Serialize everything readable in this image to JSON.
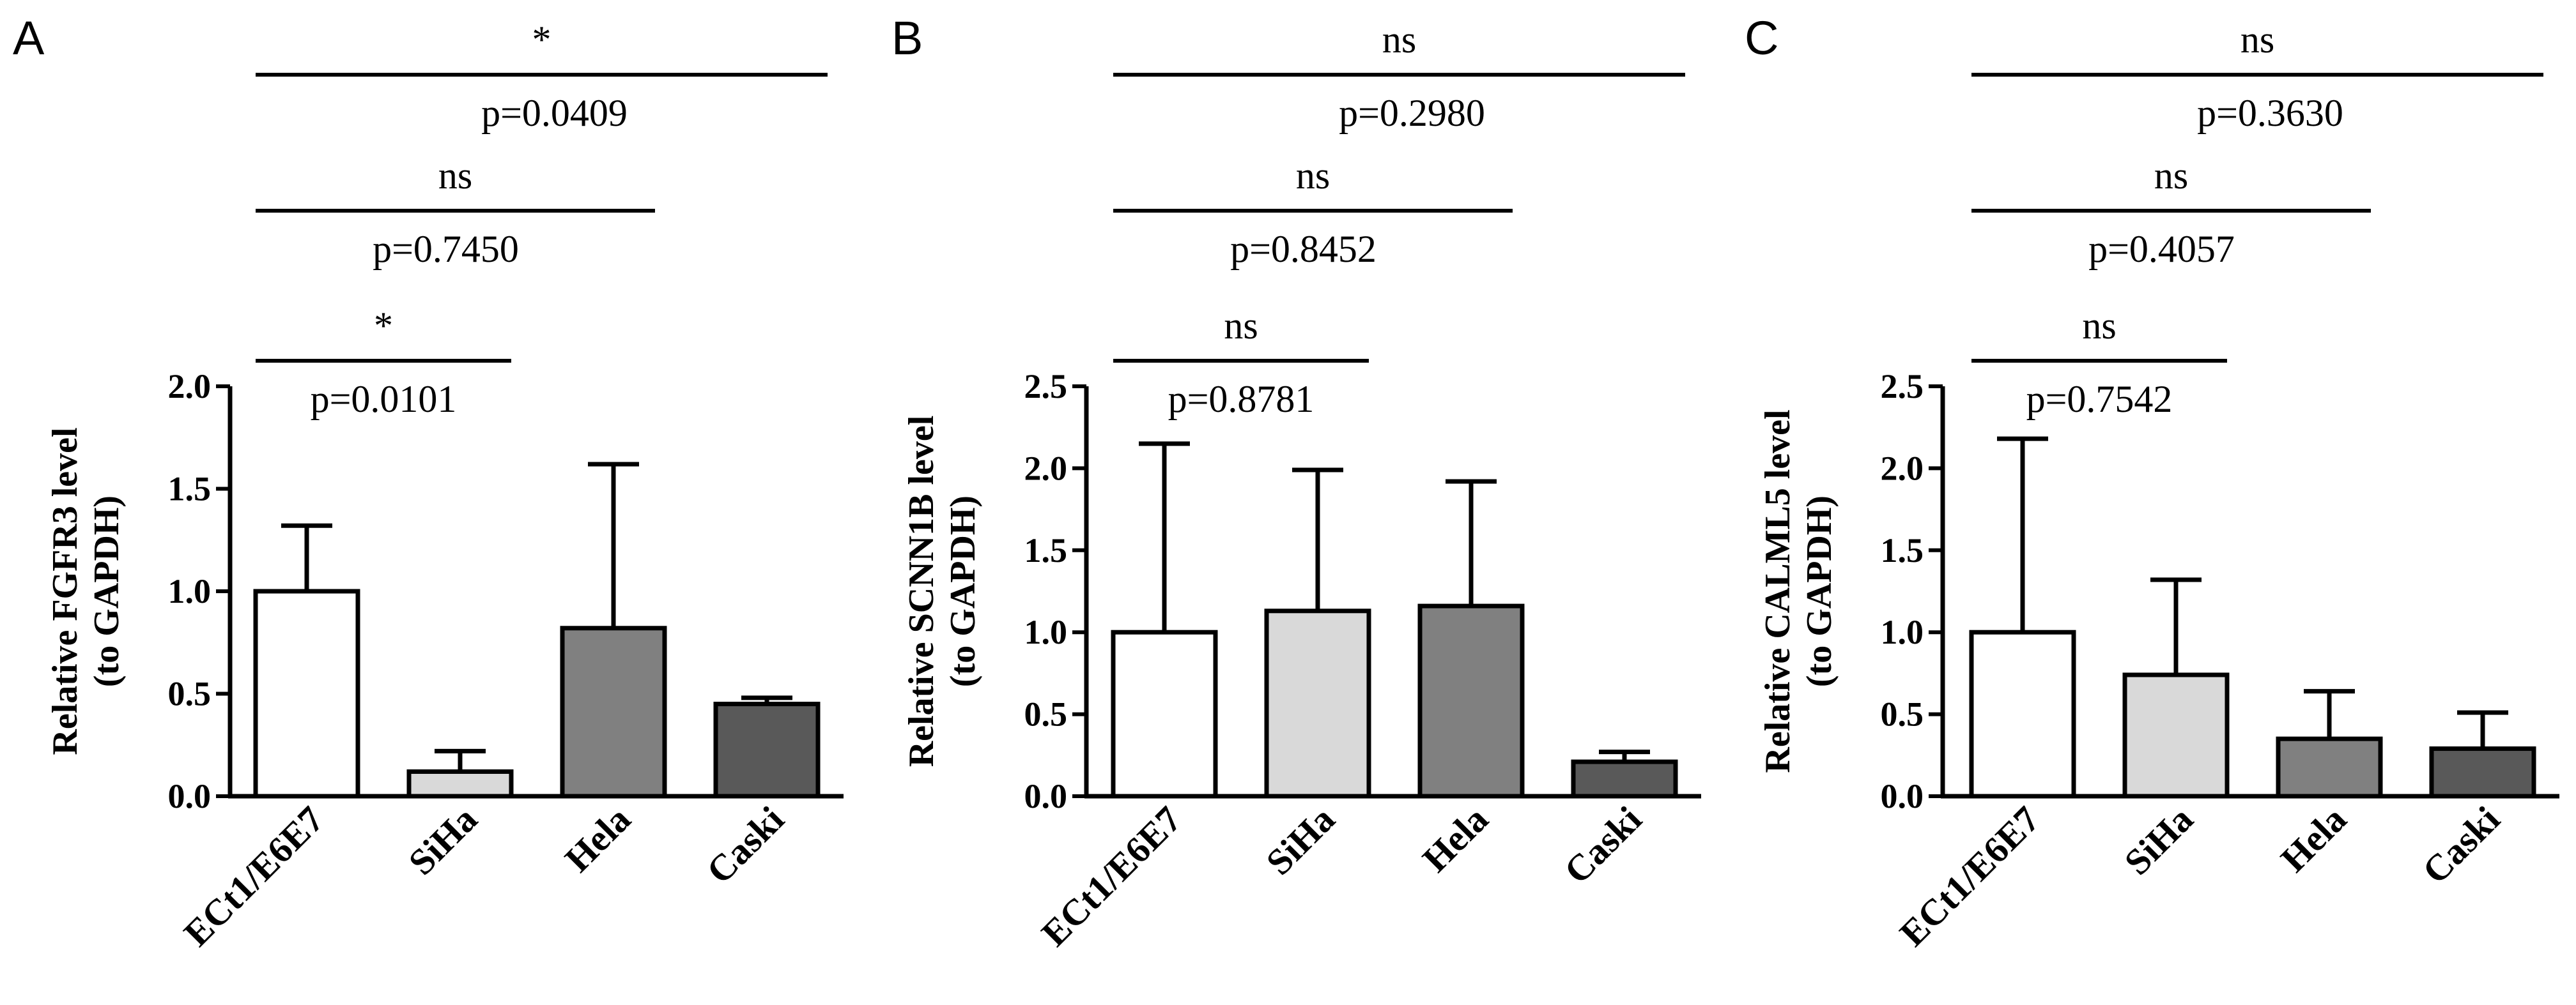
{
  "chart_data": [
    {
      "type": "bar",
      "panel": "A",
      "categories": [
        "ECt1/E6E7",
        "SiHa",
        "Hela",
        "Caski"
      ],
      "values": [
        1.0,
        0.12,
        0.82,
        0.45
      ],
      "errors": [
        0.32,
        0.1,
        0.8,
        0.03
      ],
      "colors": [
        "#ffffff",
        "#d9d9d9",
        "#808080",
        "#595959"
      ],
      "ylabel_line1": "Relative FGFR3 level",
      "ylabel_line2": "(to GAPDH)",
      "ylim": [
        0,
        2.0
      ],
      "yticks": [
        "0.0",
        "0.5",
        "1.0",
        "1.5",
        "2.0"
      ],
      "ytick_values": [
        0,
        0.5,
        1.0,
        1.5,
        2.0
      ],
      "comparisons": [
        {
          "from": 0,
          "to": 1,
          "sig": "*",
          "p": "p=0.0101",
          "level": 0
        },
        {
          "from": 0,
          "to": 2,
          "sig": "ns",
          "p": "p=0.7450",
          "level": 1
        },
        {
          "from": 0,
          "to": 3,
          "sig": "*",
          "p": "p=0.0409",
          "level": 2
        }
      ]
    },
    {
      "type": "bar",
      "panel": "B",
      "categories": [
        "ECt1/E6E7",
        "SiHa",
        "Hela",
        "Caski"
      ],
      "values": [
        1.0,
        1.13,
        1.16,
        0.21
      ],
      "errors": [
        1.15,
        0.86,
        0.76,
        0.06
      ],
      "colors": [
        "#ffffff",
        "#d9d9d9",
        "#808080",
        "#595959"
      ],
      "ylabel_line1": "Relative SCNN1B level",
      "ylabel_line2": "(to GAPDH)",
      "ylim": [
        0,
        2.5
      ],
      "yticks": [
        "0.0",
        "0.5",
        "1.0",
        "1.5",
        "2.0",
        "2.5"
      ],
      "ytick_values": [
        0,
        0.5,
        1.0,
        1.5,
        2.0,
        2.5
      ],
      "comparisons": [
        {
          "from": 0,
          "to": 1,
          "sig": "ns",
          "p": "p=0.8781",
          "level": 0
        },
        {
          "from": 0,
          "to": 2,
          "sig": "ns",
          "p": "p=0.8452",
          "level": 1
        },
        {
          "from": 0,
          "to": 3,
          "sig": "ns",
          "p": "p=0.2980",
          "level": 2
        }
      ]
    },
    {
      "type": "bar",
      "panel": "C",
      "categories": [
        "ECt1/E6E7",
        "SiHa",
        "Hela",
        "Caski"
      ],
      "values": [
        1.0,
        0.74,
        0.35,
        0.29
      ],
      "errors": [
        1.18,
        0.58,
        0.29,
        0.22
      ],
      "colors": [
        "#ffffff",
        "#d9d9d9",
        "#808080",
        "#595959"
      ],
      "ylabel_line1": "Relative CALML5 level",
      "ylabel_line2": "(to GAPDH)",
      "ylim": [
        0,
        2.5
      ],
      "yticks": [
        "0.0",
        "0.5",
        "1.0",
        "1.5",
        "2.0",
        "2.5"
      ],
      "ytick_values": [
        0,
        0.5,
        1.0,
        1.5,
        2.0,
        2.5
      ],
      "comparisons": [
        {
          "from": 0,
          "to": 1,
          "sig": "ns",
          "p": "p=0.7542",
          "level": 0
        },
        {
          "from": 0,
          "to": 2,
          "sig": "ns",
          "p": "p=0.4057",
          "level": 1
        },
        {
          "from": 0,
          "to": 3,
          "sig": "ns",
          "p": "p=0.3630",
          "level": 2
        }
      ]
    }
  ]
}
